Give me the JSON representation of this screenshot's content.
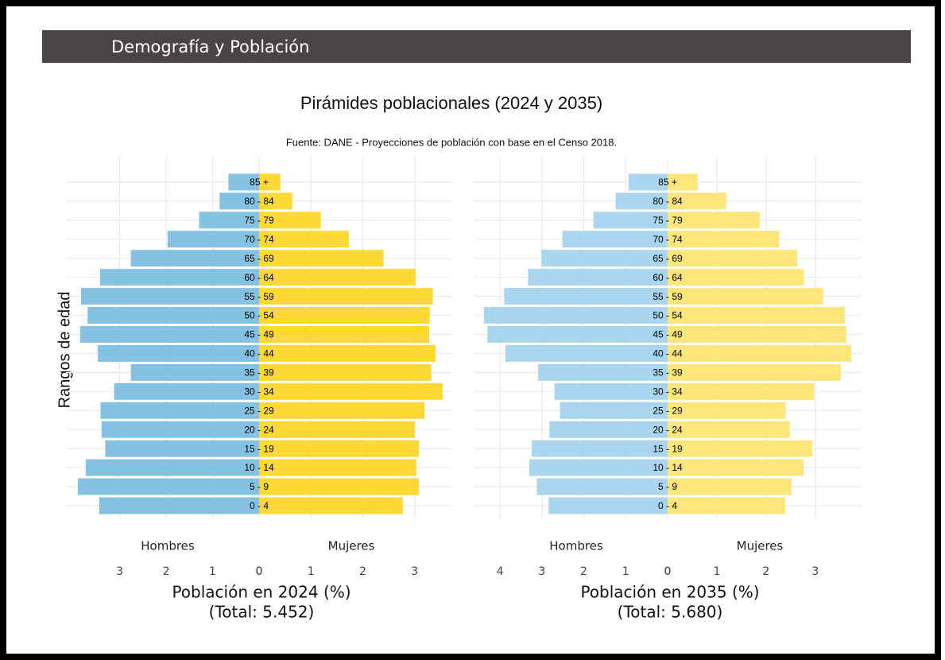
{
  "header": "Demografía y Población",
  "title": "Pirámides poblacionales (2024 y 2035)",
  "subtitle": "Fuente: DANE - Proyecciones de población con base en el Censo 2018.",
  "y_label": "Rangos de edad",
  "chart_data": [
    {
      "type": "pyramid",
      "grid": true,
      "categories": [
        "85 +",
        "80 - 84",
        "75 - 79",
        "70 - 74",
        "65 - 69",
        "60 - 64",
        "55 - 59",
        "50 - 54",
        "45 - 49",
        "40 - 44",
        "35 - 39",
        "30 - 34",
        "25 - 29",
        "20 - 24",
        "15 - 19",
        "10 - 14",
        "5 - 9",
        "0 - 4"
      ],
      "x_label": "Población en 2024 (%)",
      "x_sublabel": "(Total: 5.452)",
      "series": [
        {
          "name": "Hombres",
          "side": "left",
          "color": "#85c1e2",
          "xlim": [
            0,
            3.95
          ],
          "xticks": [
            0,
            1,
            2,
            3
          ],
          "values": [
            0.66,
            0.85,
            1.29,
            1.97,
            2.76,
            3.42,
            3.83,
            3.69,
            3.85,
            3.47,
            2.76,
            3.12,
            3.41,
            3.39,
            3.31,
            3.73,
            3.9,
            3.44
          ]
        },
        {
          "name": "Mujeres",
          "side": "right",
          "color": "#fed835",
          "xlim": [
            0,
            3.54
          ],
          "xticks": [
            0,
            1,
            2,
            3
          ],
          "values": [
            0.41,
            0.64,
            1.19,
            1.73,
            2.4,
            3.02,
            3.35,
            3.29,
            3.28,
            3.4,
            3.32,
            3.54,
            3.19,
            3.0,
            3.08,
            3.03,
            3.08,
            2.77
          ]
        }
      ]
    },
    {
      "type": "pyramid",
      "grid": true,
      "categories": [
        "85 +",
        "80 - 84",
        "75 - 79",
        "70 - 74",
        "65 - 69",
        "60 - 64",
        "55 - 59",
        "50 - 54",
        "45 - 49",
        "40 - 44",
        "35 - 39",
        "30 - 34",
        "25 - 29",
        "20 - 24",
        "15 - 19",
        "10 - 14",
        "5 - 9",
        "0 - 4"
      ],
      "x_label": "Población en 2035 (%)",
      "x_sublabel": "(Total: 5.680)",
      "series": [
        {
          "name": "Hombres",
          "side": "left",
          "color": "#a9d6ee",
          "xlim": [
            0,
            4.38
          ],
          "xticks": [
            0,
            1,
            2,
            3,
            4
          ],
          "values": [
            0.93,
            1.24,
            1.77,
            2.51,
            3.01,
            3.33,
            3.9,
            4.38,
            4.3,
            3.87,
            3.09,
            2.7,
            2.57,
            2.82,
            3.24,
            3.3,
            3.12,
            2.84
          ]
        },
        {
          "name": "Mujeres",
          "side": "right",
          "color": "#fee67a",
          "xlim": [
            0,
            3.73
          ],
          "xticks": [
            0,
            1,
            2,
            3
          ],
          "values": [
            0.61,
            1.19,
            1.87,
            2.27,
            2.63,
            2.77,
            3.16,
            3.6,
            3.63,
            3.73,
            3.52,
            2.98,
            2.4,
            2.48,
            2.94,
            2.76,
            2.52,
            2.39
          ]
        }
      ]
    }
  ]
}
